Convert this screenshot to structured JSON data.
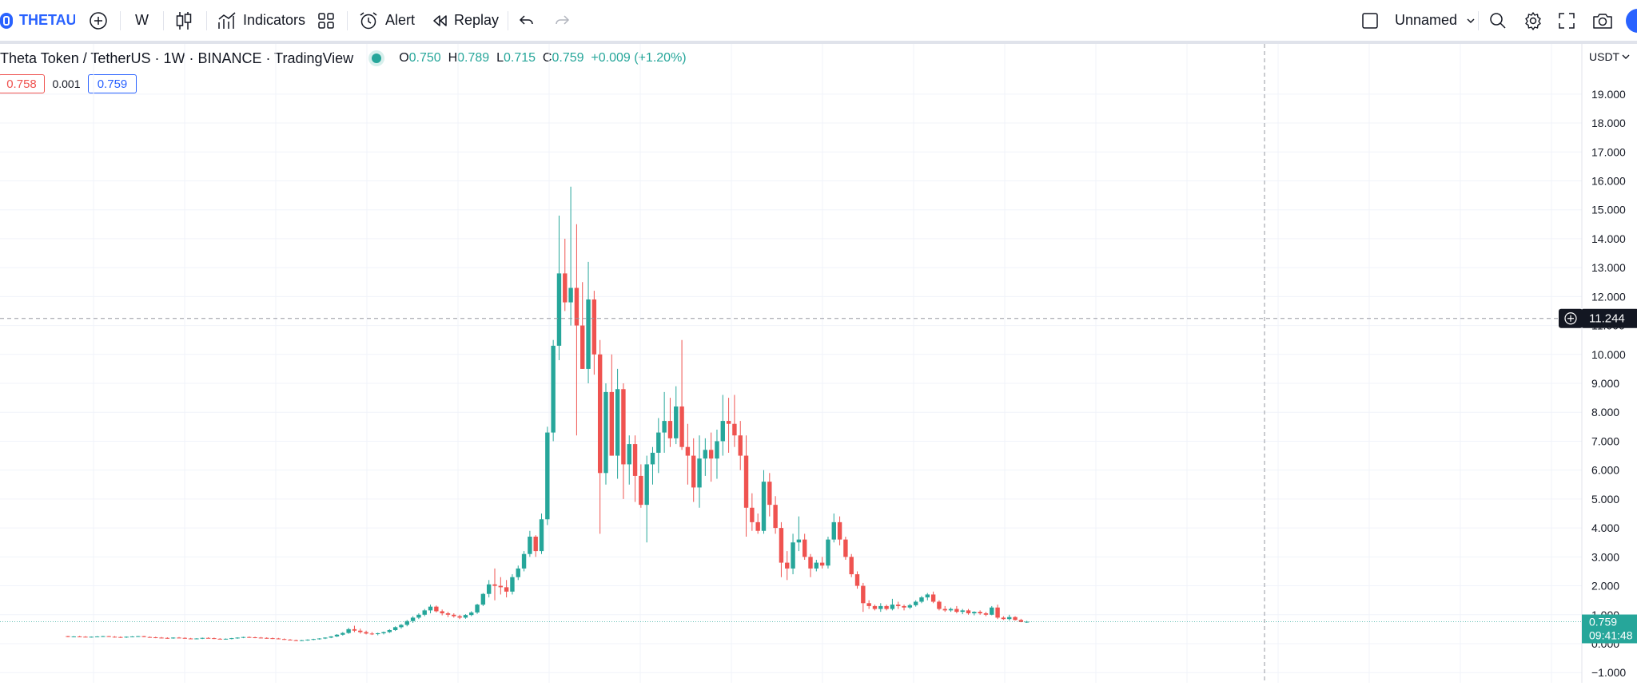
{
  "toolbar": {
    "symbol": "THETAUS",
    "interval": "W",
    "indicators_label": "Indicators",
    "alert_label": "Alert",
    "replay_label": "Replay",
    "layout_name": "Unnamed"
  },
  "legend": {
    "title": "Theta Token / TetherUS · 1W · BINANCE · TradingView",
    "o_key": "O",
    "o_val": "0.750",
    "h_key": "H",
    "h_val": "0.789",
    "l_key": "L",
    "l_val": "0.715",
    "c_key": "C",
    "c_val": "0.759",
    "change": "+0.009 (+1.20%)",
    "bid": "0.758",
    "spread": "0.001",
    "ask": "0.759"
  },
  "colors": {
    "up": "#26a69a",
    "down": "#ef5350",
    "accent": "#2962ff"
  },
  "chart_data": {
    "type": "candlestick",
    "currency": "USDT",
    "ylim": [
      -1,
      20
    ],
    "y_ticks": [
      "19.000",
      "18.000",
      "17.000",
      "16.000",
      "15.000",
      "14.000",
      "13.000",
      "12.000",
      "11.000",
      "10.000",
      "9.000",
      "8.000",
      "7.000",
      "6.000",
      "5.000",
      "4.000",
      "3.000",
      "2.000",
      "1.000",
      "0.000",
      "−1.000"
    ],
    "crosshair_price": "11.244",
    "last_price": "0.759",
    "countdown": "09:41:48",
    "candles": [
      [
        0.26,
        0.27,
        0.22,
        0.24
      ],
      [
        0.24,
        0.26,
        0.22,
        0.25
      ],
      [
        0.25,
        0.27,
        0.23,
        0.24
      ],
      [
        0.24,
        0.26,
        0.22,
        0.23
      ],
      [
        0.23,
        0.25,
        0.21,
        0.24
      ],
      [
        0.24,
        0.26,
        0.22,
        0.25
      ],
      [
        0.25,
        0.27,
        0.23,
        0.26
      ],
      [
        0.26,
        0.27,
        0.23,
        0.24
      ],
      [
        0.24,
        0.26,
        0.21,
        0.23
      ],
      [
        0.23,
        0.25,
        0.2,
        0.22
      ],
      [
        0.22,
        0.25,
        0.2,
        0.24
      ],
      [
        0.24,
        0.26,
        0.22,
        0.25
      ],
      [
        0.25,
        0.27,
        0.23,
        0.26
      ],
      [
        0.26,
        0.27,
        0.22,
        0.23
      ],
      [
        0.23,
        0.25,
        0.21,
        0.22
      ],
      [
        0.22,
        0.24,
        0.19,
        0.21
      ],
      [
        0.21,
        0.23,
        0.18,
        0.2
      ],
      [
        0.2,
        0.22,
        0.17,
        0.19
      ],
      [
        0.19,
        0.22,
        0.17,
        0.21
      ],
      [
        0.21,
        0.23,
        0.19,
        0.2
      ],
      [
        0.2,
        0.22,
        0.17,
        0.18
      ],
      [
        0.18,
        0.2,
        0.16,
        0.17
      ],
      [
        0.17,
        0.19,
        0.15,
        0.18
      ],
      [
        0.18,
        0.21,
        0.16,
        0.2
      ],
      [
        0.2,
        0.22,
        0.18,
        0.19
      ],
      [
        0.19,
        0.21,
        0.16,
        0.17
      ],
      [
        0.17,
        0.19,
        0.15,
        0.16
      ],
      [
        0.16,
        0.18,
        0.14,
        0.17
      ],
      [
        0.17,
        0.2,
        0.15,
        0.19
      ],
      [
        0.19,
        0.22,
        0.17,
        0.21
      ],
      [
        0.21,
        0.24,
        0.19,
        0.23
      ],
      [
        0.23,
        0.25,
        0.2,
        0.22
      ],
      [
        0.22,
        0.24,
        0.19,
        0.21
      ],
      [
        0.21,
        0.23,
        0.18,
        0.2
      ],
      [
        0.2,
        0.22,
        0.17,
        0.19
      ],
      [
        0.19,
        0.21,
        0.16,
        0.18
      ],
      [
        0.18,
        0.2,
        0.15,
        0.16
      ],
      [
        0.16,
        0.18,
        0.13,
        0.14
      ],
      [
        0.14,
        0.16,
        0.11,
        0.12
      ],
      [
        0.12,
        0.14,
        0.09,
        0.11
      ],
      [
        0.11,
        0.13,
        0.09,
        0.12
      ],
      [
        0.12,
        0.15,
        0.1,
        0.14
      ],
      [
        0.14,
        0.17,
        0.12,
        0.16
      ],
      [
        0.16,
        0.19,
        0.14,
        0.18
      ],
      [
        0.18,
        0.22,
        0.16,
        0.21
      ],
      [
        0.21,
        0.26,
        0.19,
        0.25
      ],
      [
        0.25,
        0.33,
        0.23,
        0.31
      ],
      [
        0.31,
        0.4,
        0.28,
        0.37
      ],
      [
        0.37,
        0.55,
        0.34,
        0.5
      ],
      [
        0.5,
        0.62,
        0.4,
        0.45
      ],
      [
        0.45,
        0.52,
        0.35,
        0.4
      ],
      [
        0.4,
        0.45,
        0.32,
        0.35
      ],
      [
        0.35,
        0.4,
        0.3,
        0.33
      ],
      [
        0.33,
        0.38,
        0.29,
        0.36
      ],
      [
        0.36,
        0.42,
        0.32,
        0.4
      ],
      [
        0.4,
        0.5,
        0.37,
        0.47
      ],
      [
        0.47,
        0.6,
        0.44,
        0.57
      ],
      [
        0.57,
        0.68,
        0.52,
        0.65
      ],
      [
        0.65,
        0.82,
        0.6,
        0.78
      ],
      [
        0.78,
        0.95,
        0.72,
        0.9
      ],
      [
        0.9,
        1.05,
        0.85,
        1.0
      ],
      [
        1.0,
        1.2,
        0.95,
        1.15
      ],
      [
        1.15,
        1.35,
        1.05,
        1.28
      ],
      [
        1.28,
        1.32,
        1.08,
        1.12
      ],
      [
        1.12,
        1.18,
        0.98,
        1.05
      ],
      [
        1.05,
        1.1,
        0.92,
        1.0
      ],
      [
        1.0,
        1.05,
        0.9,
        0.95
      ],
      [
        0.95,
        1.0,
        0.85,
        0.9
      ],
      [
        0.9,
        1.02,
        0.86,
        0.99
      ],
      [
        0.99,
        1.12,
        0.95,
        1.08
      ],
      [
        1.08,
        1.38,
        1.03,
        1.35
      ],
      [
        1.35,
        1.75,
        1.3,
        1.72
      ],
      [
        1.72,
        2.2,
        1.6,
        2.05
      ],
      [
        2.05,
        2.6,
        1.5,
        2.0
      ],
      [
        2.0,
        2.3,
        1.7,
        1.95
      ],
      [
        1.95,
        2.2,
        1.6,
        1.8
      ],
      [
        1.8,
        2.4,
        1.7,
        2.3
      ],
      [
        2.3,
        2.7,
        2.2,
        2.6
      ],
      [
        2.6,
        3.2,
        2.5,
        3.1
      ],
      [
        3.1,
        3.9,
        3.0,
        3.7
      ],
      [
        3.7,
        3.75,
        3.0,
        3.2
      ],
      [
        3.2,
        4.5,
        3.1,
        4.3
      ],
      [
        4.3,
        7.5,
        4.1,
        7.3
      ],
      [
        7.3,
        10.5,
        7.0,
        10.3
      ],
      [
        10.3,
        14.8,
        9.8,
        12.8
      ],
      [
        12.8,
        14.0,
        11.5,
        11.8
      ],
      [
        11.8,
        15.8,
        11.0,
        12.3
      ],
      [
        12.3,
        14.5,
        7.2,
        11.0
      ],
      [
        11.0,
        12.5,
        9.5,
        9.5
      ],
      [
        9.5,
        13.2,
        9.0,
        11.9
      ],
      [
        11.9,
        12.2,
        9.3,
        10.0
      ],
      [
        10.0,
        10.5,
        3.8,
        5.9
      ],
      [
        5.9,
        9.0,
        5.5,
        8.7
      ],
      [
        8.7,
        10.0,
        6.5,
        6.5
      ],
      [
        6.5,
        9.5,
        5.7,
        8.8
      ],
      [
        8.8,
        9.0,
        5.0,
        6.2
      ],
      [
        6.2,
        7.2,
        5.5,
        6.9
      ],
      [
        6.9,
        7.2,
        4.9,
        5.8
      ],
      [
        5.8,
        6.2,
        4.7,
        4.8
      ],
      [
        4.8,
        6.5,
        3.5,
        6.2
      ],
      [
        6.2,
        6.8,
        5.5,
        6.6
      ],
      [
        6.6,
        7.8,
        5.9,
        7.3
      ],
      [
        7.3,
        8.7,
        6.6,
        7.7
      ],
      [
        7.7,
        8.5,
        6.8,
        7.1
      ],
      [
        7.1,
        8.9,
        6.9,
        8.2
      ],
      [
        8.2,
        10.5,
        6.7,
        6.8
      ],
      [
        6.8,
        7.6,
        5.5,
        6.5
      ],
      [
        6.5,
        7.1,
        4.9,
        5.4
      ],
      [
        5.4,
        7.2,
        4.7,
        6.4
      ],
      [
        6.4,
        7.1,
        5.8,
        6.7
      ],
      [
        6.7,
        7.3,
        5.6,
        6.4
      ],
      [
        6.4,
        7.4,
        5.7,
        7.0
      ],
      [
        7.0,
        8.6,
        6.5,
        7.7
      ],
      [
        7.7,
        8.5,
        6.6,
        7.6
      ],
      [
        7.6,
        8.6,
        6.8,
        7.2
      ],
      [
        7.2,
        7.7,
        6.0,
        6.5
      ],
      [
        6.5,
        7.2,
        3.7,
        4.7
      ],
      [
        4.7,
        5.2,
        3.9,
        4.2
      ],
      [
        4.2,
        4.5,
        3.8,
        3.9
      ],
      [
        3.9,
        6.0,
        3.8,
        5.6
      ],
      [
        5.6,
        5.9,
        4.4,
        4.8
      ],
      [
        4.8,
        5.1,
        3.8,
        4.0
      ],
      [
        4.0,
        4.2,
        2.3,
        2.8
      ],
      [
        2.8,
        3.2,
        2.2,
        2.6
      ],
      [
        2.6,
        3.8,
        2.4,
        3.5
      ],
      [
        3.5,
        4.4,
        3.2,
        3.6
      ],
      [
        3.6,
        3.8,
        2.9,
        3.0
      ],
      [
        3.0,
        3.1,
        2.3,
        2.6
      ],
      [
        2.6,
        2.9,
        2.5,
        2.8
      ],
      [
        2.8,
        3.0,
        2.6,
        2.7
      ],
      [
        2.7,
        3.7,
        2.6,
        3.6
      ],
      [
        3.6,
        4.5,
        3.5,
        4.2
      ],
      [
        4.2,
        4.4,
        3.4,
        3.6
      ],
      [
        3.6,
        3.7,
        2.9,
        3.0
      ],
      [
        3.0,
        3.1,
        2.3,
        2.4
      ],
      [
        2.4,
        2.5,
        1.9,
        2.0
      ],
      [
        2.0,
        2.1,
        1.1,
        1.4
      ],
      [
        1.4,
        1.5,
        1.2,
        1.3
      ],
      [
        1.3,
        1.35,
        1.15,
        1.2
      ],
      [
        1.2,
        1.4,
        1.1,
        1.3
      ],
      [
        1.3,
        1.35,
        1.15,
        1.2
      ],
      [
        1.2,
        1.55,
        1.15,
        1.35
      ],
      [
        1.35,
        1.45,
        1.2,
        1.3
      ],
      [
        1.3,
        1.35,
        1.15,
        1.25
      ],
      [
        1.25,
        1.38,
        1.2,
        1.33
      ],
      [
        1.33,
        1.5,
        1.28,
        1.45
      ],
      [
        1.45,
        1.65,
        1.4,
        1.6
      ],
      [
        1.6,
        1.75,
        1.5,
        1.7
      ],
      [
        1.7,
        1.8,
        1.4,
        1.45
      ],
      [
        1.45,
        1.5,
        1.15,
        1.2
      ],
      [
        1.2,
        1.3,
        1.1,
        1.15
      ],
      [
        1.15,
        1.25,
        1.1,
        1.2
      ],
      [
        1.2,
        1.3,
        1.05,
        1.1
      ],
      [
        1.1,
        1.2,
        1.02,
        1.15
      ],
      [
        1.15,
        1.2,
        1.0,
        1.05
      ],
      [
        1.05,
        1.12,
        0.98,
        1.1
      ],
      [
        1.1,
        1.15,
        1.0,
        1.05
      ],
      [
        1.05,
        1.1,
        0.95,
        1.0
      ],
      [
        1.0,
        1.3,
        0.98,
        1.25
      ],
      [
        1.25,
        1.35,
        0.85,
        0.9
      ],
      [
        0.9,
        0.95,
        0.82,
        0.85
      ],
      [
        0.85,
        1.0,
        0.8,
        0.92
      ],
      [
        0.92,
        0.95,
        0.8,
        0.82
      ],
      [
        0.82,
        0.86,
        0.74,
        0.75
      ],
      [
        0.75,
        0.79,
        0.72,
        0.76
      ]
    ]
  }
}
